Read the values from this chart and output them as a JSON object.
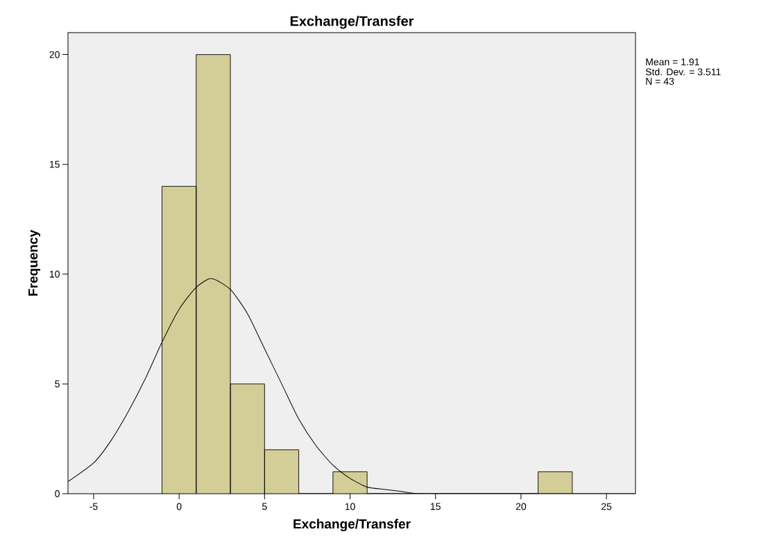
{
  "chart_data": {
    "type": "histogram",
    "title": "Exchange/Transfer",
    "xlabel": "Exchange/Transfer",
    "ylabel": "Frequency",
    "bins": [
      -1,
      1,
      3,
      5,
      7,
      9,
      11,
      13,
      15,
      17,
      19,
      21,
      23
    ],
    "values": [
      14,
      20,
      5,
      2,
      0,
      1,
      0,
      0,
      0,
      0,
      0,
      1
    ],
    "color": "#d3cd98",
    "series": [
      {
        "type": "line",
        "color": "#000000",
        "x": [
          -6.5,
          -5,
          -4,
          -3,
          -2,
          -1,
          0,
          1,
          1.91,
          3,
          4,
          5,
          6,
          7,
          8,
          9,
          10,
          11,
          12,
          13,
          14,
          16,
          20,
          26.7
        ],
        "values": [
          0.55,
          1.4,
          2.4,
          3.7,
          5.2,
          6.9,
          8.4,
          9.4,
          9.8,
          9.3,
          8.2,
          6.6,
          5.0,
          3.4,
          2.2,
          1.3,
          0.7,
          0.3,
          0.2,
          0.1,
          0,
          0,
          0,
          0
        ]
      }
    ],
    "xlim": [
      -6.5,
      26.7
    ],
    "ylim": [
      0,
      21
    ],
    "xticks": [
      -5,
      0,
      5,
      10,
      15,
      20,
      25
    ],
    "yticks": [
      0,
      5,
      10,
      15,
      20
    ],
    "grid": false,
    "annotations": [
      "Mean = 1.91",
      "Std. Dev. = 3.511",
      "N = 43"
    ]
  }
}
